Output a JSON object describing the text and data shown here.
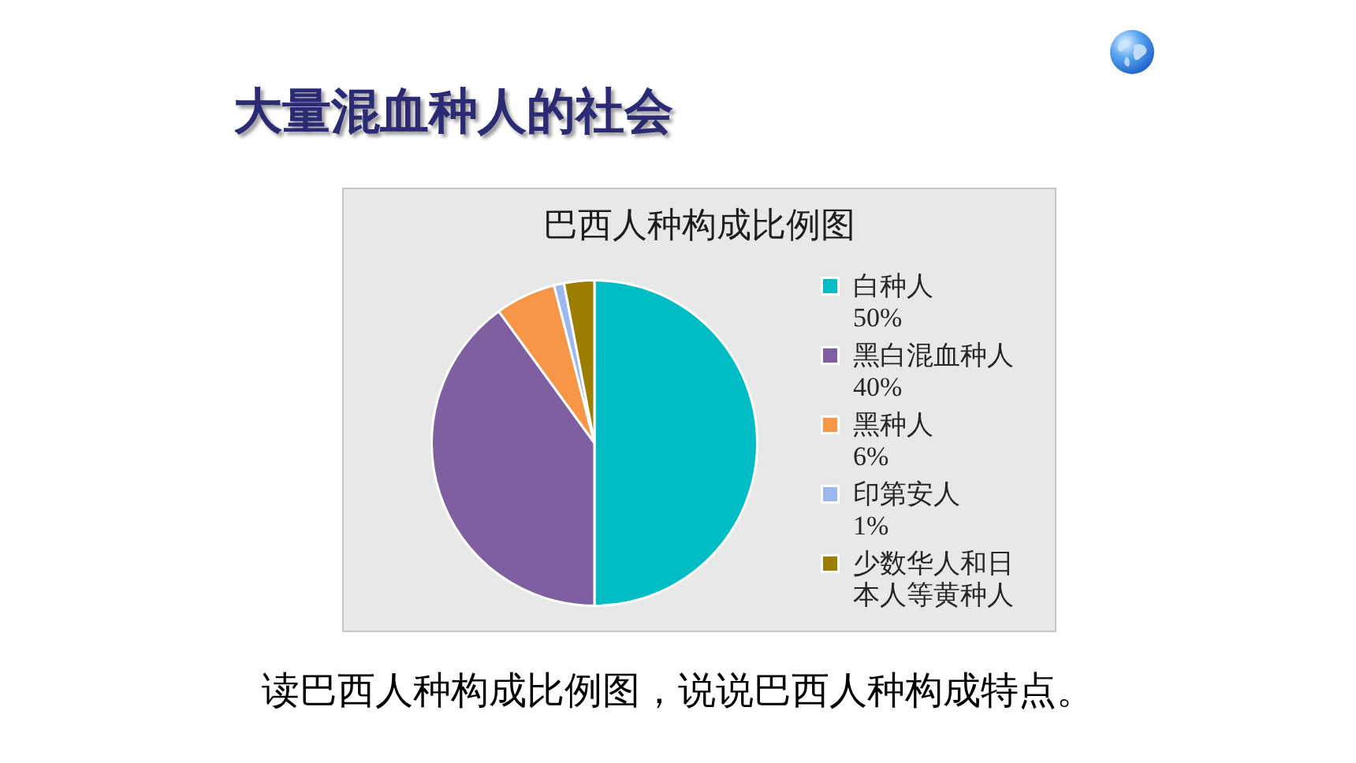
{
  "chart_data": {
    "type": "pie",
    "title": "大量混血种人的社会",
    "subtitle": "巴西人种构成比例图",
    "categories": [
      "白种人",
      "黑白混血种人",
      "黑种人",
      "印第安人",
      "少数华人和日本人等黄种人"
    ],
    "values": [
      50,
      40,
      6,
      1,
      3
    ],
    "colors": [
      "#00bcc4",
      "#7e60a0",
      "#f79646",
      "#9cb8ef",
      "#9b7d00"
    ],
    "value_labels": [
      "50%",
      "40%",
      "6%",
      "1%",
      null
    ],
    "legend": "right",
    "annotations": [
      "读巴西人种构成比例图，说说巴西人种构成特点。"
    ]
  }
}
